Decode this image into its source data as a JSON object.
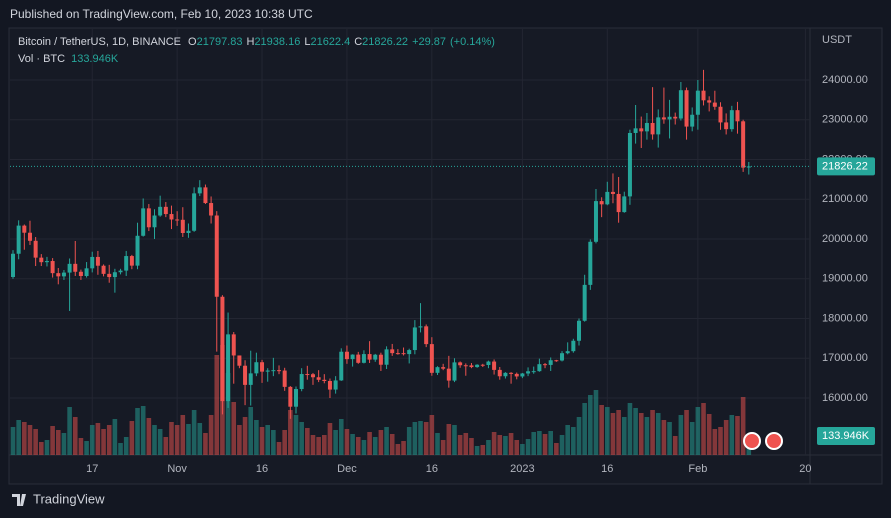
{
  "header": {
    "published": "Published on TradingView.com, Feb 10, 2023 10:38 UTC"
  },
  "footer": {
    "brand": "TradingView"
  },
  "chart_data": {
    "type": "candlestick",
    "symbol": "Bitcoin / TetherUS, 1D, BINANCE",
    "ohlc_letters": [
      "O",
      "H",
      "L",
      "C"
    ],
    "change": "+29.87",
    "change_pct": "(+0.14%)",
    "volume_title": "Vol · BTC",
    "volume_label": "133.946K",
    "currency": "USDT",
    "up_color": "#26a69a",
    "down_color": "#ef5350",
    "ylim": [
      14566,
      25258
    ],
    "yticks": [
      {
        "value": 16000,
        "label": "16000.00"
      },
      {
        "value": 17000,
        "label": "17000.00"
      },
      {
        "value": 18000,
        "label": "18000.00"
      },
      {
        "value": 19000,
        "label": "19000.00"
      },
      {
        "value": 20000,
        "label": "20000.00"
      },
      {
        "value": 21000,
        "label": "21000.00"
      },
      {
        "value": 22000,
        "label": "22000.00"
      },
      {
        "value": 23000,
        "label": "23000.00"
      },
      {
        "value": 24000,
        "label": "24000.00"
      }
    ],
    "xticks": [
      {
        "value": 14,
        "label": "17"
      },
      {
        "value": 29,
        "label": "Nov"
      },
      {
        "value": 44,
        "label": "16"
      },
      {
        "value": 59,
        "label": "Dec"
      },
      {
        "value": 74,
        "label": "16"
      },
      {
        "value": 90,
        "label": "2023"
      },
      {
        "value": 105,
        "label": "16"
      },
      {
        "value": 121,
        "label": "Feb"
      },
      {
        "value": 140,
        "label": "20"
      }
    ],
    "candles": [
      [
        19044,
        19720,
        19000,
        19629
      ],
      [
        19629,
        20470,
        19490,
        20337
      ],
      [
        20337,
        20365,
        19730,
        20158
      ],
      [
        20158,
        20460,
        19850,
        19955
      ],
      [
        19955,
        20050,
        19320,
        19531
      ],
      [
        19531,
        19620,
        19320,
        19417
      ],
      [
        19417,
        19550,
        19310,
        19446
      ],
      [
        19446,
        19520,
        19030,
        19141
      ],
      [
        19141,
        19270,
        18860,
        19060
      ],
      [
        19060,
        19220,
        18970,
        19155
      ],
      [
        19155,
        19510,
        18190,
        19375
      ],
      [
        19375,
        19950,
        19070,
        19176
      ],
      [
        19176,
        19230,
        18970,
        19069
      ],
      [
        19069,
        19420,
        19030,
        19262
      ],
      [
        19262,
        19680,
        19160,
        19549
      ],
      [
        19549,
        19700,
        19100,
        19328
      ],
      [
        19328,
        19360,
        19060,
        19123
      ],
      [
        19123,
        19350,
        18900,
        19042
      ],
      [
        19042,
        19250,
        18650,
        19164
      ],
      [
        19164,
        19250,
        19110,
        19205
      ],
      [
        19205,
        19700,
        19070,
        19571
      ],
      [
        19571,
        19600,
        19240,
        19330
      ],
      [
        19330,
        20410,
        19240,
        20081
      ],
      [
        20081,
        21020,
        20060,
        20771
      ],
      [
        20771,
        20880,
        20200,
        20295
      ],
      [
        20295,
        20750,
        20000,
        20591
      ],
      [
        20591,
        21090,
        20560,
        20809
      ],
      [
        20809,
        20930,
        20550,
        20628
      ],
      [
        20628,
        20840,
        20250,
        20491
      ],
      [
        20491,
        20700,
        20330,
        20483
      ],
      [
        20483,
        20800,
        20050,
        20151
      ],
      [
        20151,
        20390,
        20030,
        20207
      ],
      [
        20207,
        21300,
        20180,
        21148
      ],
      [
        21148,
        21480,
        21080,
        21299
      ],
      [
        21299,
        21370,
        20880,
        20905
      ],
      [
        20905,
        21070,
        20390,
        20591
      ],
      [
        20591,
        20700,
        17166,
        18547
      ],
      [
        18547,
        18587,
        15588,
        15922
      ],
      [
        15922,
        18150,
        15750,
        17601
      ],
      [
        17601,
        17660,
        16360,
        17070
      ],
      [
        17070,
        17070,
        16750,
        16812
      ],
      [
        16812,
        16950,
        15820,
        16330
      ],
      [
        16330,
        17190,
        15810,
        16620
      ],
      [
        16620,
        17140,
        16550,
        16900
      ],
      [
        16900,
        16960,
        16380,
        16663
      ],
      [
        16663,
        16750,
        16410,
        16692
      ],
      [
        16692,
        17010,
        16550,
        16700
      ],
      [
        16700,
        16820,
        16600,
        16691
      ],
      [
        16691,
        16760,
        16180,
        16280
      ],
      [
        16280,
        16300,
        15476,
        15781
      ],
      [
        15781,
        16290,
        15610,
        16226
      ],
      [
        16226,
        16750,
        16170,
        16603
      ],
      [
        16603,
        16810,
        16460,
        16598
      ],
      [
        16598,
        16630,
        16330,
        16522
      ],
      [
        16522,
        16700,
        16400,
        16458
      ],
      [
        16458,
        16600,
        16370,
        16428
      ],
      [
        16428,
        16490,
        16000,
        16212
      ],
      [
        16212,
        16550,
        16110,
        16442
      ],
      [
        16442,
        17250,
        16430,
        17164
      ],
      [
        17164,
        17320,
        16860,
        16978
      ],
      [
        16978,
        17100,
        16790,
        17092
      ],
      [
        17092,
        17160,
        16860,
        16885
      ],
      [
        16885,
        17200,
        16870,
        17105
      ],
      [
        17105,
        17430,
        16880,
        16966
      ],
      [
        16966,
        17110,
        16910,
        17089
      ],
      [
        17089,
        17140,
        16680,
        16837
      ],
      [
        16837,
        17300,
        16730,
        17224
      ],
      [
        17224,
        17360,
        17060,
        17129
      ],
      [
        17129,
        17230,
        17090,
        17128
      ],
      [
        17128,
        17270,
        17070,
        17105
      ],
      [
        17105,
        17240,
        16870,
        17206
      ],
      [
        17206,
        17960,
        17100,
        17775
      ],
      [
        17775,
        18387,
        17650,
        17803
      ],
      [
        17803,
        17850,
        17280,
        17356
      ],
      [
        17356,
        17530,
        16560,
        16633
      ],
      [
        16633,
        16800,
        16580,
        16776
      ],
      [
        16776,
        16860,
        16700,
        16738
      ],
      [
        16738,
        17060,
        16260,
        16438
      ],
      [
        16438,
        17000,
        16400,
        16896
      ],
      [
        16896,
        16920,
        16760,
        16824
      ],
      [
        16824,
        16870,
        16560,
        16821
      ],
      [
        16821,
        16880,
        16750,
        16778
      ],
      [
        16778,
        16850,
        16760,
        16837
      ],
      [
        16837,
        16860,
        16780,
        16830
      ],
      [
        16830,
        16940,
        16750,
        16917
      ],
      [
        16917,
        16970,
        16590,
        16707
      ],
      [
        16707,
        16780,
        16460,
        16547
      ],
      [
        16547,
        16650,
        16490,
        16633
      ],
      [
        16633,
        16650,
        16360,
        16607
      ],
      [
        16607,
        16640,
        16470,
        16542
      ],
      [
        16542,
        16630,
        16500,
        16617
      ],
      [
        16617,
        16770,
        16550,
        16672
      ],
      [
        16672,
        16790,
        16610,
        16675
      ],
      [
        16675,
        16990,
        16660,
        16851
      ],
      [
        16851,
        16880,
        16750,
        16832
      ],
      [
        16832,
        17020,
        16680,
        16950
      ],
      [
        16950,
        16960,
        16910,
        16943
      ],
      [
        16943,
        17180,
        16920,
        17127
      ],
      [
        17127,
        17400,
        17100,
        17178
      ],
      [
        17178,
        17490,
        17140,
        17440
      ],
      [
        17440,
        18000,
        17320,
        17943
      ],
      [
        17943,
        19100,
        17920,
        18846
      ],
      [
        18846,
        19990,
        18720,
        19930
      ],
      [
        19930,
        21258,
        19890,
        20954
      ],
      [
        20954,
        21050,
        20550,
        20872
      ],
      [
        20872,
        21440,
        20850,
        21185
      ],
      [
        21185,
        21650,
        20900,
        21133
      ],
      [
        21133,
        21560,
        20410,
        20677
      ],
      [
        20677,
        21190,
        20660,
        21072
      ],
      [
        21072,
        22750,
        20860,
        22667
      ],
      [
        22667,
        23371,
        22400,
        22784
      ],
      [
        22784,
        23080,
        22290,
        22708
      ],
      [
        22708,
        23170,
        22500,
        22919
      ],
      [
        22919,
        23820,
        22500,
        22632
      ],
      [
        22632,
        23260,
        22300,
        23060
      ],
      [
        23060,
        23810,
        22900,
        23009
      ],
      [
        23009,
        23500,
        22530,
        23075
      ],
      [
        23075,
        23180,
        22880,
        23031
      ],
      [
        23031,
        23950,
        22980,
        23743
      ],
      [
        23743,
        23810,
        22500,
        22828
      ],
      [
        22828,
        23310,
        22710,
        23126
      ],
      [
        23126,
        24000,
        22750,
        23732
      ],
      [
        23732,
        24255,
        23360,
        23489
      ],
      [
        23489,
        23590,
        23210,
        23432
      ],
      [
        23432,
        23730,
        23250,
        23327
      ],
      [
        23327,
        23440,
        22750,
        22933
      ],
      [
        22933,
        23160,
        22630,
        22763
      ],
      [
        22763,
        23350,
        22700,
        23241
      ],
      [
        23241,
        23450,
        22650,
        22961
      ],
      [
        22961,
        23000,
        21688,
        21796.35
      ],
      [
        21797.83,
        21938.16,
        21622.4,
        21826.22
      ]
    ],
    "volumes": [
      280000,
      350000,
      330000,
      300000,
      260000,
      130000,
      150000,
      290000,
      250000,
      220000,
      480000,
      380000,
      170000,
      140000,
      300000,
      320000,
      260000,
      300000,
      360000,
      120000,
      180000,
      340000,
      470000,
      490000,
      370000,
      300000,
      260000,
      180000,
      330000,
      300000,
      400000,
      310000,
      450000,
      320000,
      220000,
      400000,
      1000000,
      1100000,
      820000,
      530000,
      300000,
      380000,
      480000,
      350000,
      280000,
      300000,
      250000,
      130000,
      250000,
      450000,
      400000,
      330000,
      270000,
      200000,
      180000,
      200000,
      320000,
      250000,
      360000,
      260000,
      210000,
      180000,
      150000,
      230000,
      180000,
      250000,
      280000,
      210000,
      110000,
      140000,
      280000,
      330000,
      340000,
      330000,
      400000,
      220000,
      150000,
      310000,
      300000,
      200000,
      220000,
      170000,
      90000,
      100000,
      150000,
      230000,
      200000,
      190000,
      220000,
      150000,
      110000,
      160000,
      230000,
      240000,
      210000,
      240000,
      120000,
      200000,
      300000,
      280000,
      380000,
      520000,
      600000,
      650000,
      500000,
      480000,
      420000,
      450000,
      380000,
      520000,
      470000,
      420000,
      380000,
      450000,
      420000,
      350000,
      330000,
      190000,
      400000,
      450000,
      330000,
      480000,
      520000,
      410000,
      260000,
      280000,
      350000,
      400000,
      390000,
      580000,
      133946
    ]
  }
}
